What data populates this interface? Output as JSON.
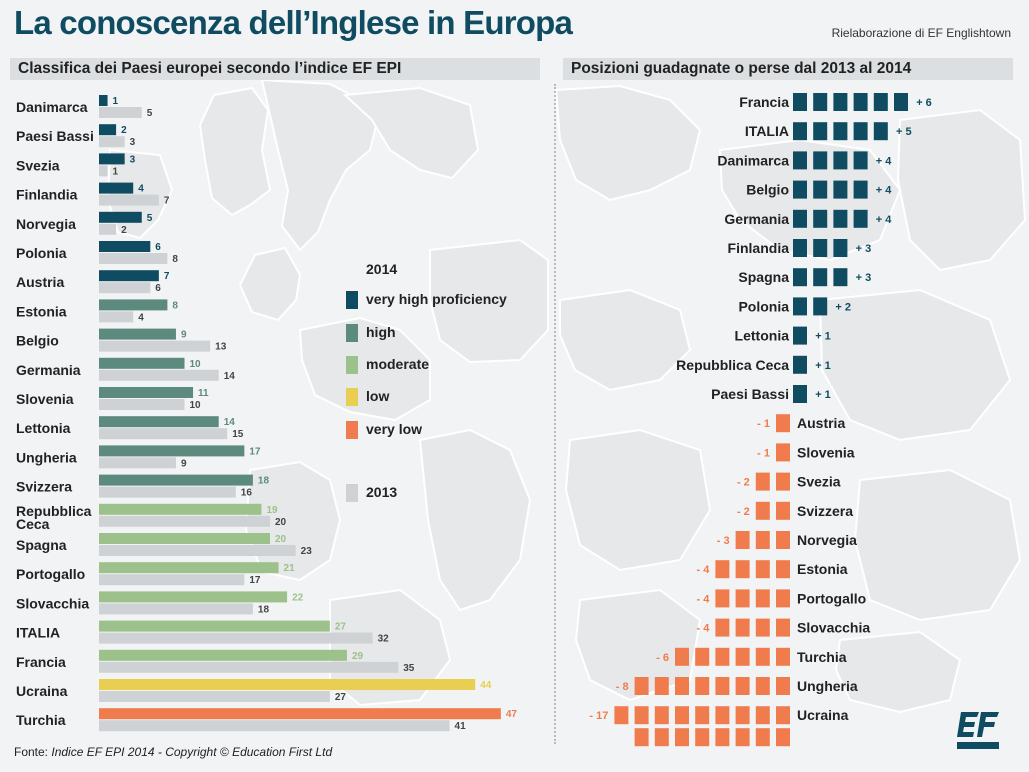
{
  "header": {
    "title": "La conoscenza dell’Inglese in Europa",
    "credit": "Rielaborazione di EF Englishtown"
  },
  "footer": {
    "prefix": "Fonte: ",
    "source": "Indice EF EPI 2014 - Copyright © Education First Ltd"
  },
  "logo": {
    "icon": "ef-logo-icon"
  },
  "colors": {
    "very_high": "#0f4c61",
    "high": "#5c8a7e",
    "moderate": "#9cc18b",
    "low": "#e8cf52",
    "very_low": "#f07c4e",
    "year_2013": "#cfd2d4",
    "gain": "#0f4c61",
    "loss": "#f07c4e"
  },
  "legend": {
    "title": "2014",
    "items": [
      {
        "label": "very high proficiency",
        "color": "#0f4c61"
      },
      {
        "label": "high",
        "color": "#5c8a7e"
      },
      {
        "label": "moderate",
        "color": "#9cc18b"
      },
      {
        "label": "low",
        "color": "#e8cf52"
      },
      {
        "label": "very low",
        "color": "#f07c4e"
      }
    ],
    "year2013_label": "2013"
  },
  "chart_data": [
    {
      "type": "bar",
      "title": "Classifica dei Paesi europei secondo l’indice EF EPI",
      "categories": [
        "Danimarca",
        "Paesi Bassi",
        "Svezia",
        "Finlandia",
        "Norvegia",
        "Polonia",
        "Austria",
        "Estonia",
        "Belgio",
        "Germania",
        "Slovenia",
        "Lettonia",
        "Ungheria",
        "Svizzera",
        "Repubblica Ceca",
        "Spagna",
        "Portogallo",
        "Slovacchia",
        "ITALIA",
        "Francia",
        "Ucraina",
        "Turchia"
      ],
      "series": [
        {
          "name": "2014",
          "values": [
            1,
            2,
            3,
            4,
            5,
            6,
            7,
            8,
            9,
            10,
            11,
            14,
            17,
            18,
            19,
            20,
            21,
            22,
            27,
            29,
            44,
            47
          ]
        },
        {
          "name": "2013",
          "values": [
            5,
            3,
            1,
            7,
            2,
            8,
            6,
            4,
            13,
            14,
            10,
            15,
            9,
            16,
            20,
            23,
            17,
            18,
            32,
            35,
            27,
            41
          ]
        }
      ],
      "levels_2014": [
        "very high proficiency",
        "very high proficiency",
        "very high proficiency",
        "very high proficiency",
        "very high proficiency",
        "very high proficiency",
        "very high proficiency",
        "high",
        "high",
        "high",
        "high",
        "high",
        "high",
        "high",
        "moderate",
        "moderate",
        "moderate",
        "moderate",
        "moderate",
        "moderate",
        "low",
        "very low"
      ]
    },
    {
      "type": "bar",
      "title": "Posizioni guadagnate o perse dal 2013 al 2014",
      "categories": [
        "Francia",
        "ITALIA",
        "Danimarca",
        "Belgio",
        "Germania",
        "Finlandia",
        "Spagna",
        "Polonia",
        "Lettonia",
        "Repubblica Ceca",
        "Paesi Bassi",
        "Austria",
        "Slovenia",
        "Svezia",
        "Svizzera",
        "Norvegia",
        "Estonia",
        "Portogallo",
        "Slovacchia",
        "Turchia",
        "Ungheria",
        "Ucraina"
      ],
      "values": [
        6,
        5,
        4,
        4,
        4,
        3,
        3,
        2,
        1,
        1,
        1,
        -1,
        -1,
        -2,
        -2,
        -3,
        -4,
        -4,
        -4,
        -6,
        -8,
        -17
      ],
      "value_labels": [
        "+ 6",
        "+ 5",
        "+ 4",
        "+ 4",
        "+ 4",
        "+ 3",
        "+ 3",
        "+ 2",
        "+ 1",
        "+ 1",
        "+ 1",
        "- 1",
        "- 1",
        "- 2",
        "- 2",
        "- 3",
        "- 4",
        "- 4",
        "- 4",
        "- 6",
        "- 8",
        "- 17"
      ]
    }
  ]
}
